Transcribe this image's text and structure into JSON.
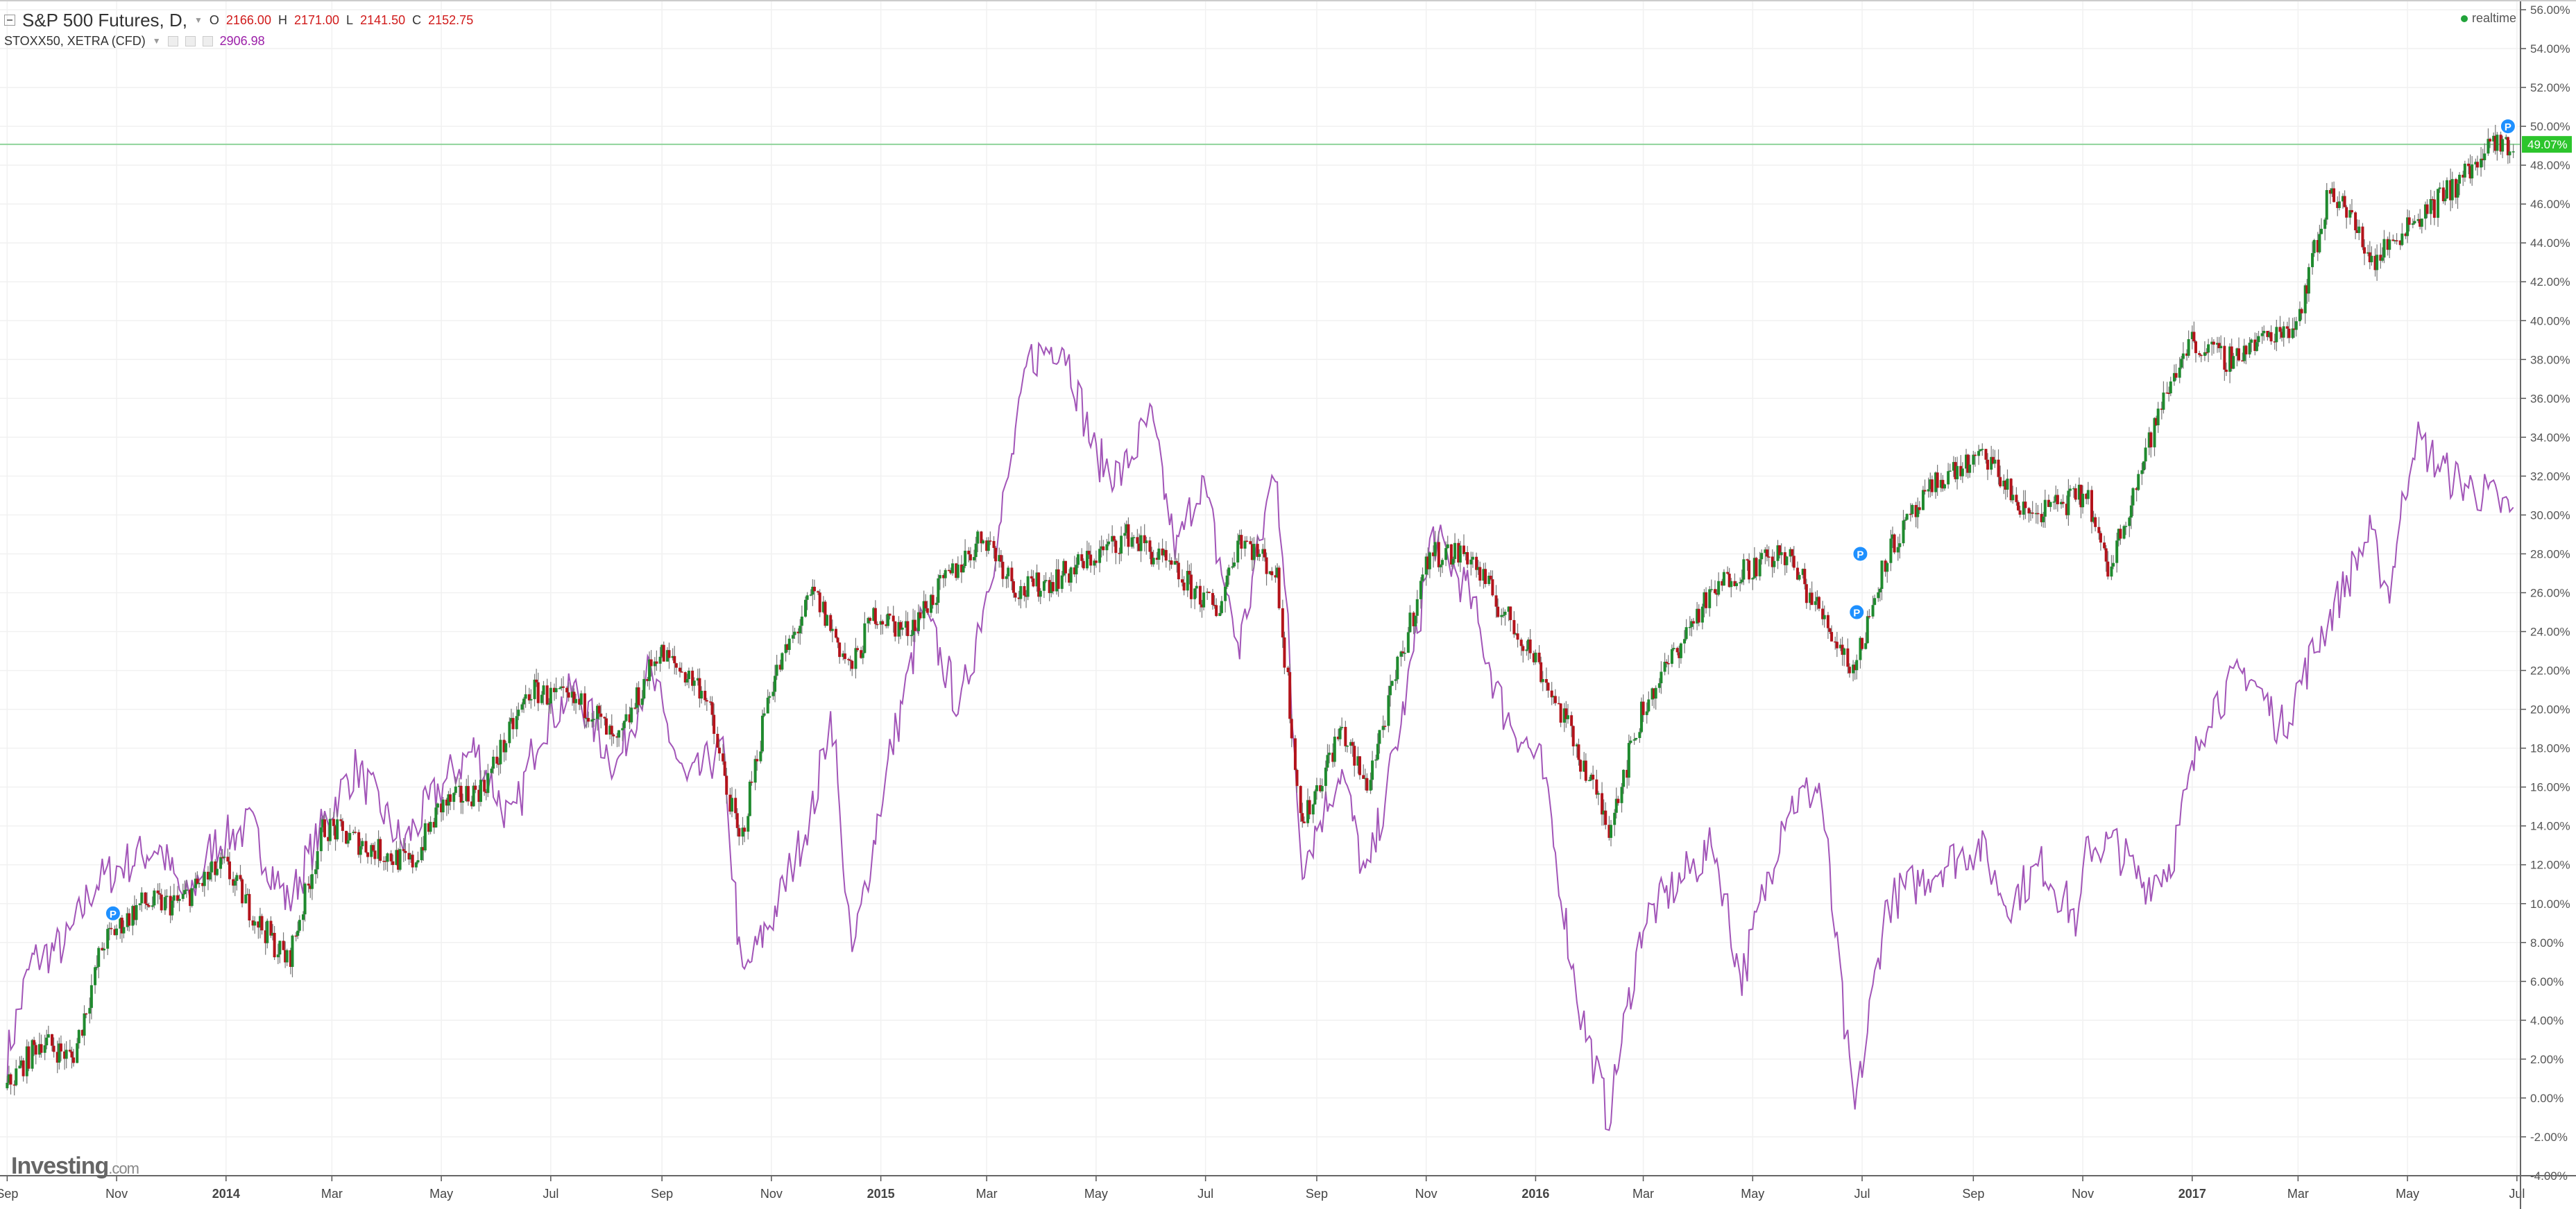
{
  "header": {
    "symbol": "S&P 500 Futures, D,",
    "ohlc": {
      "o_label": "O",
      "o": "2166.00",
      "h_label": "H",
      "h": "2171.00",
      "l_label": "L",
      "l": "2141.50",
      "c_label": "C",
      "c": "2152.75"
    },
    "compare_symbol": "STOXX50, XETRA (CFD)",
    "compare_value": "2906.98",
    "realtime_label": "realtime"
  },
  "logo": {
    "text": "Investing",
    "suffix": ".com"
  },
  "price_tag": "49.07%",
  "colors": {
    "up": "#1f8a2e",
    "down": "#b3131b",
    "stoxx_line": "#a255b8",
    "price_line": "#8fd39a",
    "price_tag_bg": "#2cc52c",
    "marker": "#1e90ff",
    "grid": "#f1f1f1"
  },
  "markers": [
    "P",
    "P",
    "P",
    "P"
  ],
  "chart_data": {
    "type": "line",
    "y_unit": "%",
    "ylim": [
      -4,
      56
    ],
    "y_ticks": [
      "56.00%",
      "54.00%",
      "52.00%",
      "50.00%",
      "48.00%",
      "46.00%",
      "44.00%",
      "42.00%",
      "40.00%",
      "38.00%",
      "36.00%",
      "34.00%",
      "32.00%",
      "30.00%",
      "28.00%",
      "26.00%",
      "24.00%",
      "22.00%",
      "20.00%",
      "18.00%",
      "16.00%",
      "14.00%",
      "12.00%",
      "10.00%",
      "8.00%",
      "6.00%",
      "4.00%",
      "2.00%",
      "0.00%",
      "-2.00%",
      "-4.00%"
    ],
    "x_ticks": [
      {
        "label": "Sep",
        "date": "2013-09-01",
        "bold": false
      },
      {
        "label": "Nov",
        "date": "2013-11-01",
        "bold": false
      },
      {
        "label": "2014",
        "date": "2014-01-01",
        "bold": true
      },
      {
        "label": "Mar",
        "date": "2014-03-01",
        "bold": false
      },
      {
        "label": "May",
        "date": "2014-05-01",
        "bold": false
      },
      {
        "label": "Jul",
        "date": "2014-07-01",
        "bold": false
      },
      {
        "label": "Sep",
        "date": "2014-09-01",
        "bold": false
      },
      {
        "label": "Nov",
        "date": "2014-11-01",
        "bold": false
      },
      {
        "label": "2015",
        "date": "2015-01-01",
        "bold": true
      },
      {
        "label": "Mar",
        "date": "2015-03-01",
        "bold": false
      },
      {
        "label": "May",
        "date": "2015-05-01",
        "bold": false
      },
      {
        "label": "Jul",
        "date": "2015-07-01",
        "bold": false
      },
      {
        "label": "Sep",
        "date": "2015-09-01",
        "bold": false
      },
      {
        "label": "Nov",
        "date": "2015-11-01",
        "bold": false
      },
      {
        "label": "2016",
        "date": "2016-01-01",
        "bold": true
      },
      {
        "label": "Mar",
        "date": "2016-03-01",
        "bold": false
      },
      {
        "label": "May",
        "date": "2016-05-01",
        "bold": false
      },
      {
        "label": "Jul",
        "date": "2016-07-01",
        "bold": false
      },
      {
        "label": "Sep",
        "date": "2016-09-01",
        "bold": false
      },
      {
        "label": "Nov",
        "date": "2016-11-01",
        "bold": false
      },
      {
        "label": "2017",
        "date": "2017-01-01",
        "bold": true
      },
      {
        "label": "Mar",
        "date": "2017-03-01",
        "bold": false
      },
      {
        "label": "May",
        "date": "2017-05-01",
        "bold": false
      },
      {
        "label": "Jul",
        "date": "2017-07-01",
        "bold": false
      }
    ],
    "current_value": 49.07,
    "series": [
      {
        "name": "S&P 500 Futures",
        "style": "candlestick",
        "x": [
          "2013-09-01",
          "2013-09-20",
          "2013-10-08",
          "2013-10-25",
          "2013-11-15",
          "2013-12-05",
          "2013-12-31",
          "2014-01-20",
          "2014-02-05",
          "2014-02-25",
          "2014-03-20",
          "2014-04-15",
          "2014-05-01",
          "2014-05-25",
          "2014-06-20",
          "2014-07-25",
          "2014-08-07",
          "2014-08-30",
          "2014-09-25",
          "2014-10-15",
          "2014-10-31",
          "2014-11-25",
          "2014-12-16",
          "2014-12-29",
          "2015-01-15",
          "2015-02-28",
          "2015-03-20",
          "2015-04-15",
          "2015-05-20",
          "2015-06-15",
          "2015-07-08",
          "2015-07-20",
          "2015-08-10",
          "2015-08-24",
          "2015-09-15",
          "2015-09-29",
          "2015-11-03",
          "2015-11-25",
          "2015-12-14",
          "2015-12-30",
          "2016-01-20",
          "2016-02-11",
          "2016-03-01",
          "2016-04-01",
          "2016-04-20",
          "2016-05-20",
          "2016-06-08",
          "2016-06-27",
          "2016-07-15",
          "2016-08-15",
          "2016-09-09",
          "2016-09-30",
          "2016-11-04",
          "2016-11-15",
          "2016-12-13",
          "2016-12-30",
          "2017-01-20",
          "2017-03-01",
          "2017-03-20",
          "2017-04-13",
          "2017-05-01",
          "2017-05-17",
          "2017-06-19",
          "2017-06-30"
        ],
        "values": [
          0.5,
          3,
          2,
          8,
          10,
          10,
          12,
          9,
          7,
          14,
          13,
          12,
          15,
          16,
          21,
          20,
          18,
          23,
          21,
          13,
          21,
          26,
          22,
          25,
          24,
          29,
          26,
          27,
          29,
          27,
          25,
          29,
          27,
          14,
          19,
          16,
          28,
          28,
          25,
          23,
          19,
          14,
          20,
          25,
          27,
          28,
          25,
          22,
          28,
          32,
          33,
          30,
          31,
          27,
          35,
          39,
          38,
          40,
          47,
          43,
          45,
          46,
          49,
          49.07
        ]
      },
      {
        "name": "STOXX50, XETRA (CFD)",
        "style": "line",
        "x": [
          "2013-09-01",
          "2013-09-15",
          "2013-10-05",
          "2013-10-20",
          "2013-11-05",
          "2013-11-25",
          "2013-12-10",
          "2013-12-25",
          "2014-01-15",
          "2014-02-05",
          "2014-03-01",
          "2014-03-15",
          "2014-04-10",
          "2014-05-01",
          "2014-05-20",
          "2014-06-10",
          "2014-06-25",
          "2014-07-15",
          "2014-08-07",
          "2014-08-25",
          "2014-09-15",
          "2014-10-05",
          "2014-10-16",
          "2014-11-05",
          "2014-11-25",
          "2014-12-05",
          "2014-12-16",
          "2015-01-05",
          "2015-01-25",
          "2015-02-15",
          "2015-03-10",
          "2015-03-25",
          "2015-04-13",
          "2015-05-01",
          "2015-05-15",
          "2015-06-01",
          "2015-06-15",
          "2015-06-29",
          "2015-07-20",
          "2015-08-10",
          "2015-08-24",
          "2015-09-15",
          "2015-09-29",
          "2015-10-20",
          "2015-11-05",
          "2015-11-25",
          "2015-12-14",
          "2016-01-05",
          "2016-01-25",
          "2016-02-11",
          "2016-03-01",
          "2016-03-20",
          "2016-04-10",
          "2016-04-25",
          "2016-05-20",
          "2016-06-08",
          "2016-06-27",
          "2016-07-15",
          "2016-08-15",
          "2016-09-05",
          "2016-09-20",
          "2016-10-10",
          "2016-10-30",
          "2016-11-04",
          "2016-11-20",
          "2016-12-05",
          "2016-12-20",
          "2017-01-10",
          "2017-02-01",
          "2017-02-20",
          "2017-03-15",
          "2017-04-10",
          "2017-04-21",
          "2017-05-05",
          "2017-05-25",
          "2017-06-15",
          "2017-06-30"
        ],
        "values": [
          2,
          7,
          8,
          11,
          12,
          13,
          10,
          13,
          14,
          10,
          15,
          17,
          13,
          16,
          18,
          14,
          19,
          21,
          17,
          22,
          16,
          18,
          6,
          10,
          15,
          20,
          7,
          17,
          25,
          20,
          30,
          38,
          39,
          33,
          32,
          35,
          28,
          32,
          23,
          33,
          12,
          17,
          11,
          20,
          29,
          26,
          20,
          17,
          5,
          -1,
          9,
          11,
          13,
          6,
          15,
          16,
          -1,
          10,
          12,
          13,
          10,
          12,
          9,
          13,
          13,
          11,
          12,
          20,
          22,
          19,
          24,
          29,
          26,
          34,
          32,
          31,
          30
        ]
      }
    ]
  }
}
